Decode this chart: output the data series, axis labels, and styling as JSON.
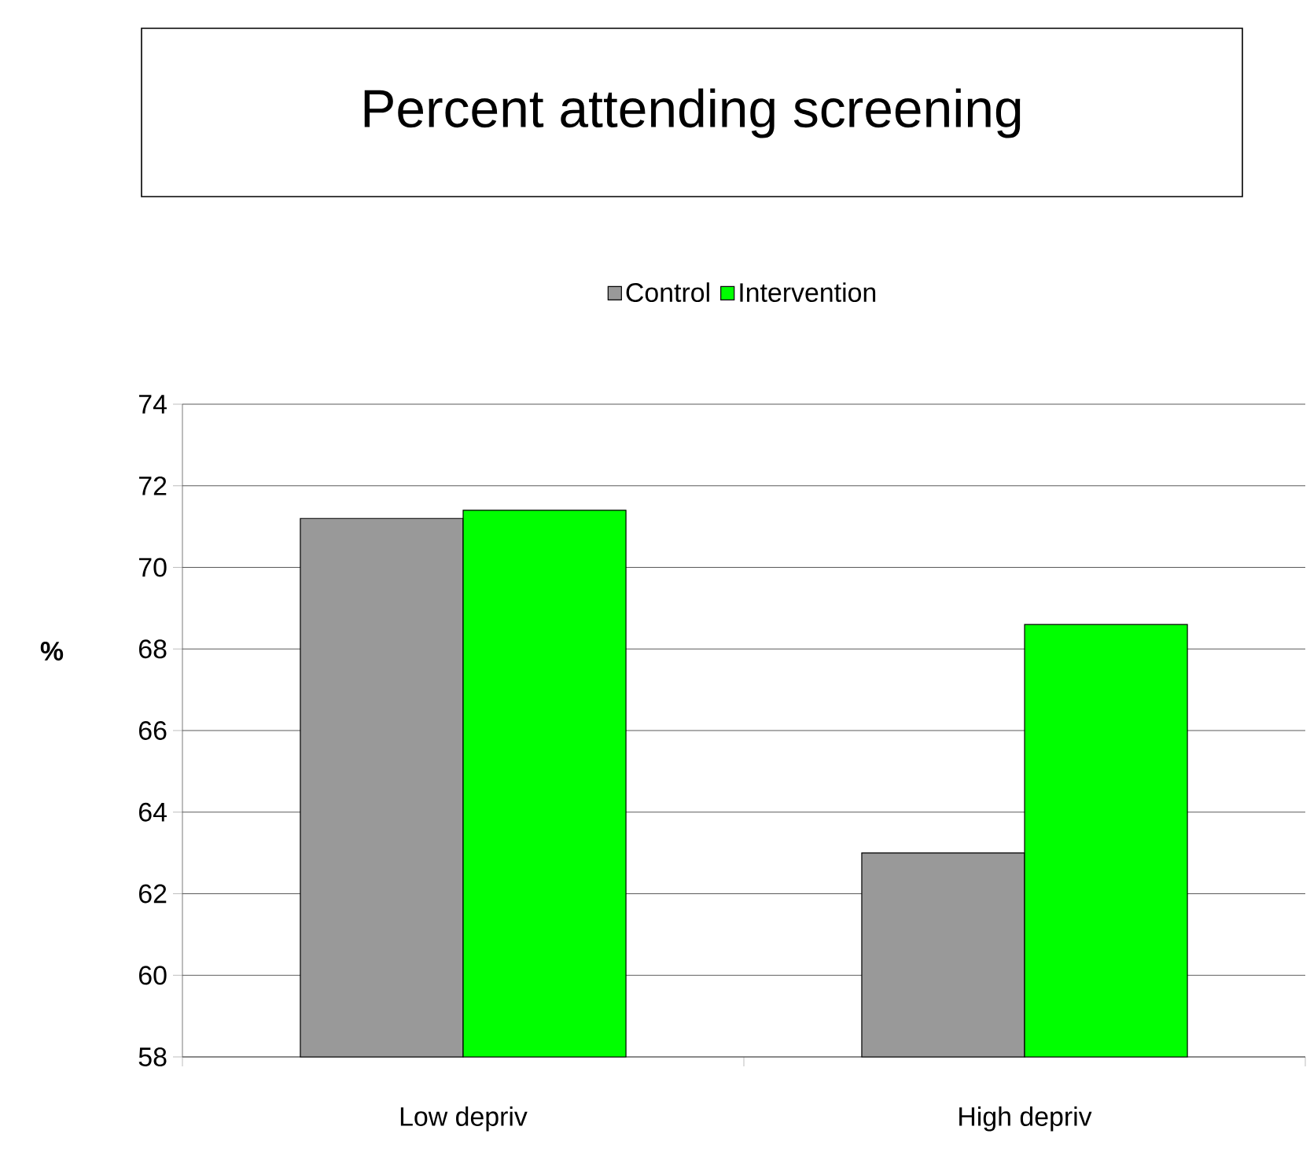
{
  "chart_data": {
    "type": "bar",
    "title": "Percent attending screening",
    "ylabel": "%",
    "categories": [
      "Low depriv",
      "High depriv"
    ],
    "series": [
      {
        "name": "Control",
        "color": "#999999",
        "values": [
          71.2,
          63.0
        ]
      },
      {
        "name": "Intervention",
        "color": "#00ff00",
        "values": [
          71.4,
          68.6
        ]
      }
    ],
    "ylim": [
      58,
      74
    ],
    "yticks": [
      58,
      60,
      62,
      64,
      66,
      68,
      70,
      72,
      74
    ],
    "grid": "y",
    "legend": "top"
  }
}
